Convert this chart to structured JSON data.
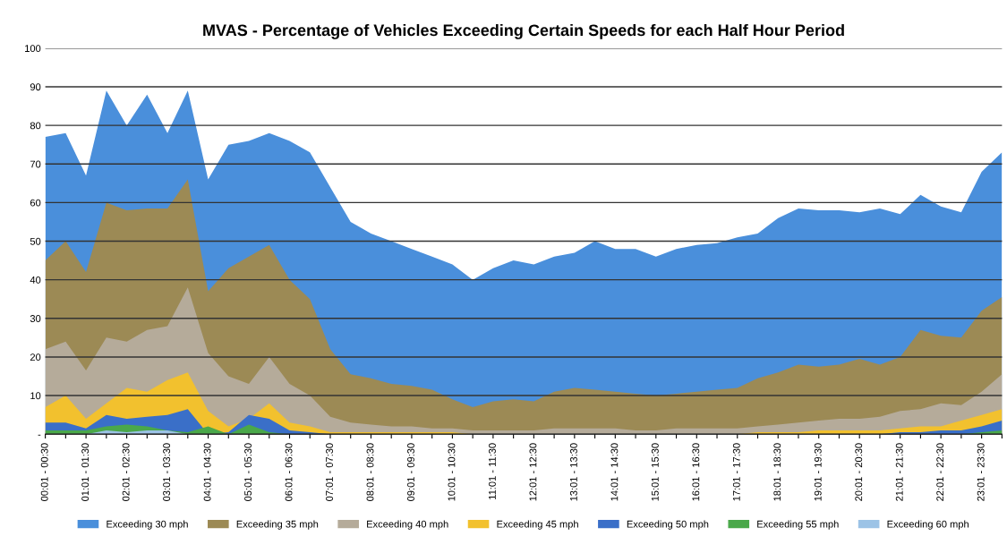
{
  "chart_data": {
    "type": "area",
    "title": "MVAS - Percentage of Vehicles Exceeding Certain Speeds for each Half Hour Period",
    "categories": [
      "00:01 - 00:30",
      null,
      "01:01 - 01:30",
      null,
      "02:01 - 02:30",
      null,
      "03:01 - 03:30",
      null,
      "04:01 - 04:30",
      null,
      "05:01 - 05:30",
      null,
      "06:01 - 06:30",
      null,
      "07:01 - 07:30",
      null,
      "08:01 - 08:30",
      null,
      "09:01 - 09:30",
      null,
      "10:01 - 10:30",
      null,
      "11:01 - 11:30",
      null,
      "12:01 - 12:30",
      null,
      "13:01 - 13:30",
      null,
      "14:01 - 14:30",
      null,
      "15:01 - 15:30",
      null,
      "16:01 - 16:30",
      null,
      "17:01 - 17:30",
      null,
      "18:01 - 18:30",
      null,
      "19:01 - 19:30",
      null,
      "20:01 - 20:30",
      null,
      "21:01 - 21:30",
      null,
      "22:01 - 22:30",
      null,
      "23:01 - 23:30",
      null
    ],
    "series": [
      {
        "name": "Exceeding 30 mph",
        "color": "#4a8fdb",
        "values": [
          77,
          78,
          67,
          89,
          80,
          88,
          78,
          89,
          66,
          75,
          76,
          78,
          76,
          73,
          64,
          55,
          52,
          50,
          48,
          46,
          44,
          40,
          43,
          45,
          44,
          46,
          47,
          50,
          48,
          48,
          46,
          48,
          49,
          49.5,
          51,
          52,
          56,
          58.5,
          58,
          58,
          57.5,
          58.5,
          57,
          62,
          59,
          57.5,
          68,
          73
        ]
      },
      {
        "name": "Exceeding 35 mph",
        "color": "#9c8a55",
        "values": [
          45,
          50,
          42,
          60,
          58,
          58.5,
          58.5,
          66,
          37,
          43,
          46,
          49,
          40,
          35,
          22,
          15.5,
          14.5,
          13,
          12.5,
          11.5,
          9,
          7,
          8.5,
          9,
          8.5,
          11,
          12,
          11.5,
          11,
          10.5,
          10,
          10.5,
          11,
          11.5,
          12,
          14.5,
          16,
          18,
          17.5,
          18,
          19.5,
          18,
          20,
          27,
          25.5,
          25,
          32,
          35.5
        ]
      },
      {
        "name": "Exceeding 40 mph",
        "color": "#b5ab9a",
        "values": [
          22,
          24,
          16.5,
          25,
          24,
          27,
          28,
          38,
          21,
          15,
          13,
          20,
          13,
          10,
          4.5,
          3,
          2.5,
          2,
          2,
          1.5,
          1.5,
          1,
          1,
          1,
          1,
          1.5,
          1.5,
          1.5,
          1.5,
          1,
          1,
          1.5,
          1.5,
          1.5,
          1.5,
          2,
          2.5,
          3,
          3.5,
          4,
          4,
          4.5,
          6,
          6.5,
          8,
          7.5,
          11,
          15.5
        ]
      },
      {
        "name": "Exceeding 45 mph",
        "color": "#f2c12e",
        "values": [
          7,
          10,
          4,
          8,
          12,
          11,
          14,
          16,
          6,
          2,
          4,
          8,
          3,
          2,
          0.5,
          0.5,
          0.5,
          0.5,
          0.5,
          0.5,
          0.5,
          0,
          0,
          0,
          0,
          0,
          0,
          0,
          0,
          0,
          0,
          0,
          0,
          0,
          0,
          0.5,
          0.5,
          0.5,
          1,
          1,
          1,
          1,
          1.5,
          2,
          2,
          3.5,
          5,
          6.5
        ]
      },
      {
        "name": "Exceeding 50 mph",
        "color": "#3a6fc8",
        "values": [
          3,
          3,
          1.5,
          5,
          4,
          4.5,
          5,
          6.5,
          null,
          0.5,
          5,
          4,
          1,
          0.5,
          0,
          0,
          0,
          0,
          0,
          0,
          0,
          0,
          0,
          0,
          0,
          0,
          0,
          0,
          0,
          0,
          0,
          0,
          0,
          0,
          0,
          0,
          0,
          0,
          0,
          0,
          0,
          0,
          0.5,
          0.5,
          1,
          1,
          2,
          3.5
        ]
      },
      {
        "name": "Exceeding 55 mph",
        "color": "#4aa84a",
        "values": [
          1,
          1,
          1,
          2,
          2.5,
          2,
          1,
          0.5,
          2,
          0,
          2.5,
          0.5,
          0,
          0,
          0,
          0,
          0,
          0,
          0,
          0,
          0,
          0,
          0,
          0,
          0,
          0,
          0,
          0,
          0,
          0,
          0,
          0,
          0,
          0,
          0,
          0,
          0,
          0,
          0,
          0,
          0,
          0,
          0,
          0,
          0,
          0,
          0.5,
          1
        ]
      },
      {
        "name": "Exceeding 60 mph",
        "color": "#9cc3e6",
        "values": [
          0,
          0,
          0,
          1,
          0.5,
          1,
          1,
          0,
          0,
          0,
          0,
          0,
          0,
          0,
          0,
          0,
          0,
          0,
          0,
          0,
          0,
          0,
          0,
          0,
          0,
          0,
          0,
          0,
          0,
          0,
          0,
          0,
          0,
          0,
          0,
          0,
          0,
          0,
          0,
          0,
          0,
          0,
          0,
          0,
          0,
          0,
          0,
          0
        ]
      }
    ],
    "ylim": [
      0,
      100
    ],
    "yticks": [
      {
        "value": 0,
        "label": "-"
      },
      10,
      20,
      30,
      40,
      50,
      60,
      70,
      80,
      90,
      100
    ],
    "grid": "y",
    "legend": "bottom"
  }
}
